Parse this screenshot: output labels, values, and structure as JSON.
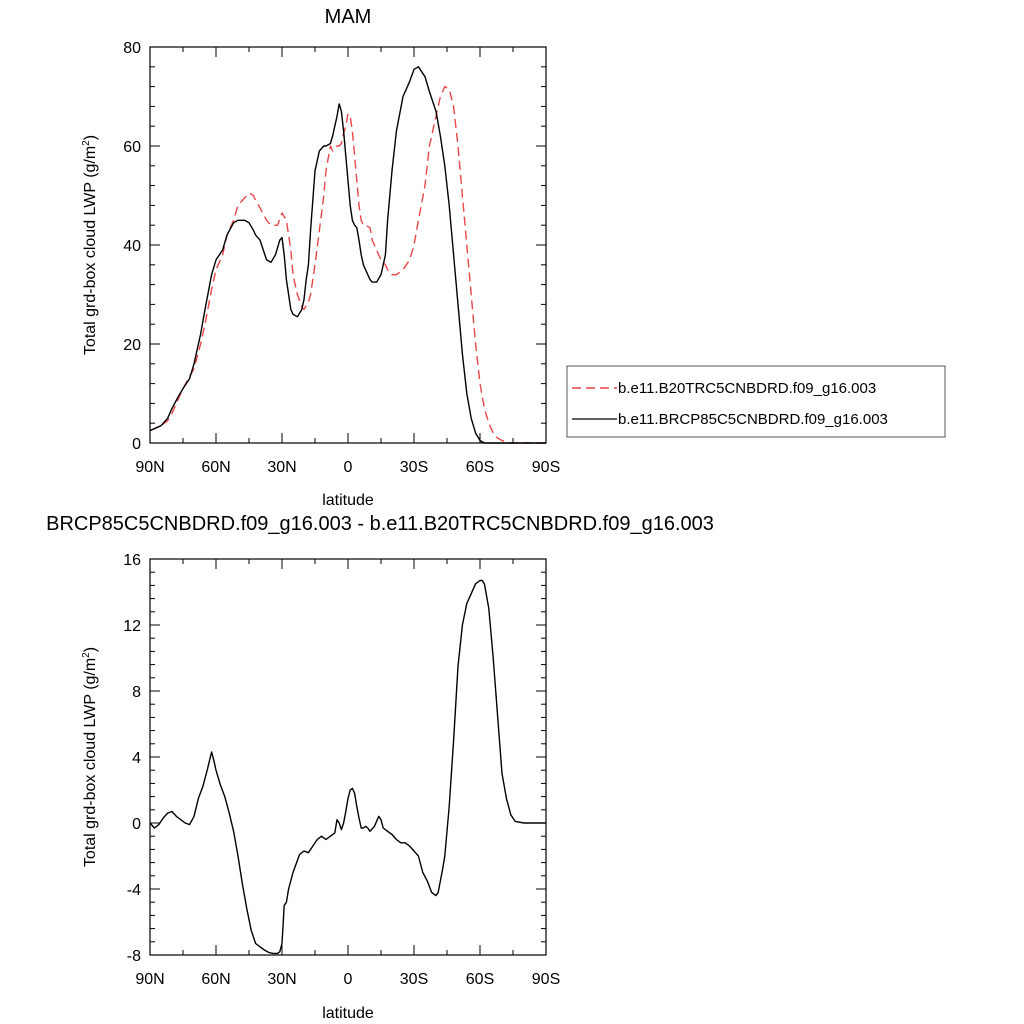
{
  "figure": {
    "title_top": "MAM",
    "title_bottom": "BRCP85C5CNBDRD.f09_g16.003 - b.e11.B20TRC5CNBDRD.f09_g16.003"
  },
  "colors": {
    "series_dashed": "#e8474a",
    "series_solid": "#000000",
    "axis": "#000000"
  },
  "chart_data": [
    {
      "type": "line",
      "title": "MAM",
      "xlabel": "latitude",
      "ylabel": "Total grd-box cloud LWP (g/m",
      "ylabel_superscript": "2",
      "ylabel_suffix": ")",
      "xlim": [
        90,
        -90
      ],
      "ylim": [
        0,
        80
      ],
      "xticks": [
        90,
        60,
        30,
        0,
        -30,
        -60,
        -90
      ],
      "xtick_labels": [
        "90N",
        "60N",
        "30N",
        "0",
        "30S",
        "60S",
        "90S"
      ],
      "yticks": [
        0,
        20,
        40,
        60,
        80
      ],
      "ytick_labels": [
        "0",
        "20",
        "40",
        "60",
        "80"
      ],
      "legend_position": "outside-right",
      "grid": false,
      "series": [
        {
          "name": "b.e11.B20TRC5CNBDRD.f09_g16.003",
          "style": "dashed",
          "color": "#e8474a",
          "x": [
            90,
            85,
            82,
            80,
            77,
            75,
            72,
            70,
            67,
            65,
            62,
            60,
            57,
            55,
            52,
            50,
            47,
            45,
            43,
            42,
            40,
            37,
            35,
            32,
            30,
            28,
            26,
            25,
            23,
            21,
            20,
            18,
            17,
            15,
            13,
            11,
            10,
            8,
            7,
            5,
            4,
            3,
            2,
            1,
            0,
            -1,
            -2,
            -3,
            -4,
            -5,
            -6,
            -7,
            -8,
            -10,
            -11,
            -13,
            -15,
            -17,
            -18,
            -20,
            -22,
            -25,
            -28,
            -30,
            -32,
            -35,
            -37,
            -40,
            -42,
            -44,
            -46,
            -48,
            -50,
            -52,
            -54,
            -56,
            -58,
            -60,
            -62,
            -64,
            -66,
            -68,
            -70,
            -72,
            -74,
            -76,
            -78,
            -80,
            -85,
            -90
          ],
          "y": [
            2.5,
            3.5,
            4.5,
            6,
            9,
            11,
            13.5,
            15,
            20,
            24,
            31,
            35,
            38,
            42,
            45,
            48,
            49.5,
            50.5,
            50,
            49,
            47.5,
            45,
            44,
            44,
            46.5,
            45,
            39,
            34,
            30,
            27.5,
            27,
            28.5,
            30,
            36,
            43,
            50,
            55,
            60,
            59,
            60,
            60,
            60.5,
            62.5,
            64,
            66.5,
            66,
            63,
            58,
            53,
            48,
            45,
            44,
            44,
            43.5,
            41,
            39,
            37,
            36,
            35,
            34,
            34,
            35,
            37,
            40,
            45,
            52,
            60,
            66,
            70,
            72,
            71.5,
            68,
            60,
            50,
            40,
            30,
            20,
            12,
            7,
            4,
            2,
            1,
            0.5,
            0.2,
            0,
            0,
            0,
            0,
            0,
            0
          ]
        },
        {
          "name": "b.e11.BRCP85C5CNBDRD.f09_g16.003",
          "style": "solid",
          "color": "#000000",
          "x": [
            90,
            85,
            82,
            80,
            77,
            75,
            72,
            70,
            67,
            65,
            62,
            60,
            57,
            55,
            52,
            50,
            47,
            45,
            43,
            42,
            40,
            37,
            35,
            33,
            31,
            30,
            29,
            28,
            27,
            26,
            25,
            23,
            21,
            20,
            19,
            18,
            17,
            15,
            13,
            11,
            10,
            8,
            7,
            5,
            4,
            3,
            2,
            1,
            0,
            -1,
            -2,
            -3,
            -4,
            -5,
            -6,
            -7,
            -8,
            -10,
            -11,
            -13,
            -15,
            -17,
            -18,
            -20,
            -22,
            -25,
            -28,
            -30,
            -32,
            -35,
            -37,
            -40,
            -42,
            -44,
            -46,
            -48,
            -50,
            -52,
            -54,
            -56,
            -58,
            -60,
            -62,
            -64,
            -66,
            -68,
            -70,
            -72,
            -74,
            -76,
            -78,
            -80,
            -85,
            -90
          ],
          "y": [
            2.5,
            3.5,
            5,
            7,
            9.5,
            11,
            13,
            16,
            22,
            27,
            34,
            37,
            39,
            42,
            44.5,
            45,
            45,
            44.5,
            43,
            42,
            41,
            37,
            36.5,
            38,
            41,
            41.5,
            38,
            33,
            30,
            27,
            26,
            25.5,
            27,
            29,
            33,
            36,
            43,
            55,
            59,
            60,
            60,
            60.5,
            62,
            66,
            68.5,
            67,
            63,
            58,
            53,
            48,
            45,
            44,
            43.5,
            41,
            38,
            36,
            35,
            33,
            32.5,
            32.5,
            34,
            38,
            45,
            55,
            63,
            70,
            73,
            75.5,
            76,
            74,
            71,
            67,
            62,
            56,
            48,
            38,
            28,
            18,
            10,
            5,
            2,
            0.5,
            0,
            0,
            0,
            0,
            0,
            0,
            0,
            0,
            0,
            0,
            0,
            0
          ]
        }
      ]
    },
    {
      "type": "line",
      "title": "BRCP85C5CNBDRD.f09_g16.003 - b.e11.B20TRC5CNBDRD.f09_g16.003",
      "xlabel": "latitude",
      "ylabel": "Total grd-box cloud LWP (g/m",
      "ylabel_superscript": "2",
      "ylabel_suffix": ")",
      "xlim": [
        90,
        -90
      ],
      "ylim": [
        -8,
        16
      ],
      "xticks": [
        90,
        60,
        30,
        0,
        -30,
        -60,
        -90
      ],
      "xtick_labels": [
        "90N",
        "60N",
        "30N",
        "0",
        "30S",
        "60S",
        "90S"
      ],
      "yticks": [
        -8,
        -4,
        0,
        4,
        8,
        12,
        16
      ],
      "ytick_labels": [
        "-8",
        "-4",
        "0",
        "4",
        "8",
        "12",
        "16"
      ],
      "grid": false,
      "series": [
        {
          "style": "solid",
          "color": "#000000",
          "x": [
            90,
            88,
            86,
            84,
            82,
            80,
            78,
            76,
            74,
            72,
            70,
            68,
            66,
            64,
            62,
            61,
            60,
            58,
            56,
            54,
            52,
            50,
            48,
            46,
            44,
            42,
            40,
            38,
            36,
            34,
            33,
            32,
            31,
            30,
            29,
            28,
            27,
            25,
            22,
            20,
            18,
            16,
            14,
            12,
            10,
            8,
            6,
            5,
            4,
            3,
            2,
            1,
            0,
            -1,
            -2,
            -3,
            -4,
            -5,
            -6,
            -7,
            -8,
            -9,
            -10,
            -12,
            -14,
            -15,
            -16,
            -18,
            -20,
            -22,
            -24,
            -26,
            -28,
            -30,
            -32,
            -34,
            -36,
            -38,
            -40,
            -41,
            -42,
            -43,
            -44,
            -46,
            -48,
            -50,
            -52,
            -54,
            -56,
            -58,
            -60,
            -61,
            -62,
            -64,
            -66,
            -68,
            -70,
            -72,
            -74,
            -76,
            -80,
            -85,
            -90
          ],
          "y": [
            0,
            -0.3,
            -0.1,
            0.3,
            0.6,
            0.7,
            0.4,
            0.2,
            0,
            -0.1,
            0.4,
            1.5,
            2.2,
            3.2,
            4.3,
            3.8,
            3.2,
            2.3,
            1.6,
            0.6,
            -0.5,
            -2.0,
            -3.7,
            -5.2,
            -6.5,
            -7.3,
            -7.5,
            -7.7,
            -7.85,
            -7.9,
            -7.9,
            -7.9,
            -7.8,
            -7.3,
            -5.0,
            -4.8,
            -4.0,
            -3.0,
            -1.9,
            -1.7,
            -1.8,
            -1.4,
            -1.0,
            -0.8,
            -1.0,
            -0.8,
            -0.6,
            0.2,
            0,
            -0.4,
            0,
            0.7,
            1.5,
            2.0,
            2.1,
            1.8,
            1.0,
            0.3,
            -0.3,
            -0.3,
            -0.2,
            -0.3,
            -0.5,
            -0.2,
            0.4,
            0.2,
            -0.3,
            -0.5,
            -0.7,
            -1.0,
            -1.2,
            -1.2,
            -1.4,
            -1.7,
            -2.0,
            -3.0,
            -3.5,
            -4.2,
            -4.4,
            -4.2,
            -3.5,
            -2.8,
            -2.0,
            1.0,
            5.0,
            9.5,
            12.0,
            13.3,
            13.9,
            14.5,
            14.7,
            14.7,
            14.5,
            13.0,
            10.0,
            6.5,
            3.0,
            1.5,
            0.5,
            0.1,
            0,
            0,
            0
          ]
        }
      ]
    }
  ]
}
